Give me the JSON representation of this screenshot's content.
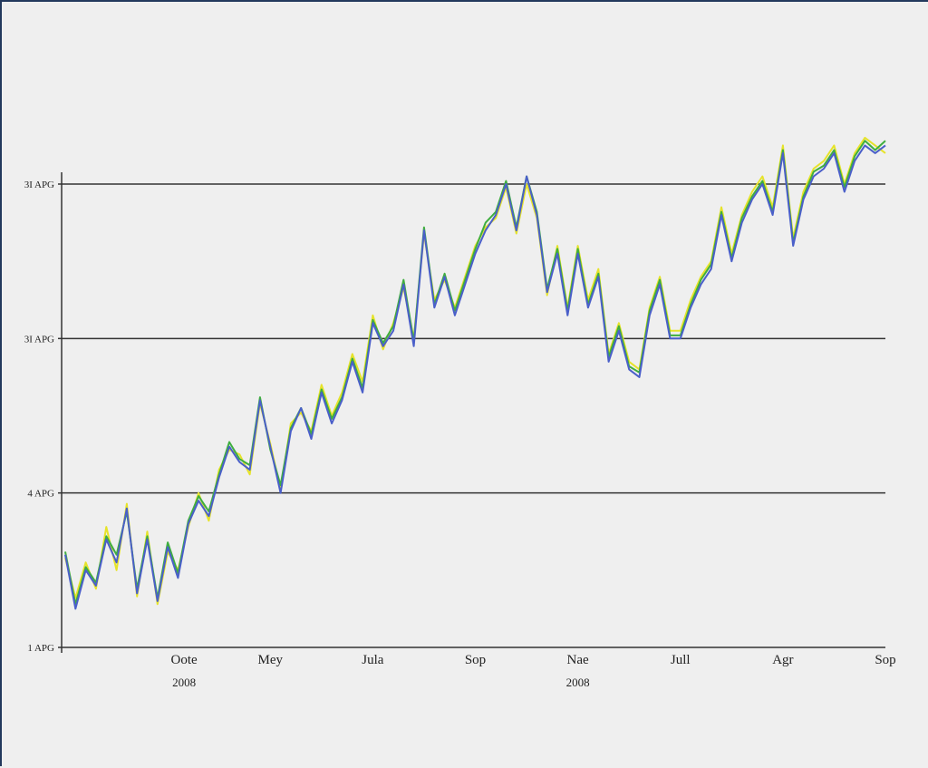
{
  "chart_data": {
    "type": "line",
    "title": "",
    "xlabel": "",
    "ylabel": "",
    "grid": true,
    "y_ticks": [
      {
        "label": "1 APG",
        "value": 1
      },
      {
        "label": "4 APG",
        "value": 2
      },
      {
        "label": "3I APG",
        "value": 3
      },
      {
        "label": "3I APG",
        "value": 4
      }
    ],
    "ylim": [
      1,
      4.75
    ],
    "x_ticks": [
      {
        "label": "Oote",
        "value": 1
      },
      {
        "label": "Mey",
        "value": 2
      },
      {
        "label": "Jula",
        "value": 3
      },
      {
        "label": "Sop",
        "value": 4
      },
      {
        "label": "Nae",
        "value": 5
      },
      {
        "label": "Jull",
        "value": 6
      },
      {
        "label": "Agr",
        "value": 7
      },
      {
        "label": "Sop",
        "value": 8
      }
    ],
    "x_year_labels": [
      {
        "label": "2008",
        "value": 1
      },
      {
        "label": "2008",
        "value": 5
      }
    ],
    "xlim": [
      0.0,
      8.0
    ],
    "colors": {
      "series_1": "#4a5fc9",
      "series_2": "#3fae3f",
      "series_3": "#e6e32a"
    },
    "series": [
      {
        "color_key": "series_1",
        "x": [
          0.0,
          0.1,
          0.2,
          0.3,
          0.4,
          0.5,
          0.6,
          0.7,
          0.8,
          0.9,
          1.0,
          1.1,
          1.2,
          1.3,
          1.4,
          1.5,
          1.6,
          1.7,
          1.8,
          1.9,
          2.0,
          2.1,
          2.2,
          2.3,
          2.4,
          2.5,
          2.6,
          2.7,
          2.8,
          2.9,
          3.0,
          3.1,
          3.2,
          3.3,
          3.4,
          3.5,
          3.6,
          3.7,
          3.8,
          3.9,
          4.0,
          4.1,
          4.2,
          4.3,
          4.4,
          4.5,
          4.6,
          4.7,
          4.8,
          4.9,
          5.0,
          5.1,
          5.2,
          5.3,
          5.4,
          5.5,
          5.6,
          5.7,
          5.8,
          5.9,
          6.0,
          6.1,
          6.2,
          6.3,
          6.4,
          6.5,
          6.6,
          6.7,
          6.8,
          6.9,
          7.0,
          7.1,
          7.2,
          7.3,
          7.4,
          7.5,
          7.6,
          7.7,
          7.8,
          7.9,
          8.0
        ],
        "values": [
          1.6,
          1.25,
          1.5,
          1.4,
          1.7,
          1.55,
          1.9,
          1.35,
          1.7,
          1.3,
          1.65,
          1.45,
          1.8,
          1.95,
          1.85,
          2.1,
          2.3,
          2.2,
          2.15,
          2.6,
          2.3,
          2.0,
          2.4,
          2.55,
          2.35,
          2.65,
          2.45,
          2.6,
          2.85,
          2.65,
          3.1,
          2.95,
          3.05,
          3.35,
          2.95,
          3.7,
          3.2,
          3.4,
          3.15,
          3.35,
          3.55,
          3.7,
          3.8,
          4.0,
          3.7,
          4.05,
          3.8,
          3.3,
          3.55,
          3.15,
          3.55,
          3.2,
          3.4,
          2.85,
          3.05,
          2.8,
          2.75,
          3.15,
          3.35,
          3.0,
          3.0,
          3.2,
          3.35,
          3.45,
          3.8,
          3.5,
          3.75,
          3.9,
          4.0,
          3.8,
          4.2,
          3.6,
          3.9,
          4.05,
          4.1,
          4.2,
          3.95,
          4.15,
          4.25,
          4.2,
          4.25
        ]
      },
      {
        "color_key": "series_2",
        "x": [
          0.0,
          0.1,
          0.2,
          0.3,
          0.4,
          0.5,
          0.6,
          0.7,
          0.8,
          0.9,
          1.0,
          1.1,
          1.2,
          1.3,
          1.4,
          1.5,
          1.6,
          1.7,
          1.8,
          1.9,
          2.0,
          2.1,
          2.2,
          2.3,
          2.4,
          2.5,
          2.6,
          2.7,
          2.8,
          2.9,
          3.0,
          3.1,
          3.2,
          3.3,
          3.4,
          3.5,
          3.6,
          3.7,
          3.8,
          3.9,
          4.0,
          4.1,
          4.2,
          4.3,
          4.4,
          4.5,
          4.6,
          4.7,
          4.8,
          4.9,
          5.0,
          5.1,
          5.2,
          5.3,
          5.4,
          5.5,
          5.6,
          5.7,
          5.8,
          5.9,
          6.0,
          6.1,
          6.2,
          6.3,
          6.4,
          6.5,
          6.6,
          6.7,
          6.8,
          6.9,
          7.0,
          7.1,
          7.2,
          7.3,
          7.4,
          7.5,
          7.6,
          7.7,
          7.8,
          7.9,
          8.0
        ],
        "values": [
          1.62,
          1.28,
          1.52,
          1.42,
          1.72,
          1.6,
          1.88,
          1.38,
          1.72,
          1.32,
          1.68,
          1.48,
          1.82,
          1.98,
          1.88,
          2.12,
          2.33,
          2.22,
          2.18,
          2.62,
          2.28,
          2.05,
          2.42,
          2.55,
          2.38,
          2.67,
          2.48,
          2.62,
          2.87,
          2.68,
          3.12,
          2.97,
          3.08,
          3.38,
          2.98,
          3.72,
          3.22,
          3.42,
          3.18,
          3.38,
          3.58,
          3.75,
          3.82,
          4.02,
          3.72,
          4.05,
          3.82,
          3.32,
          3.58,
          3.18,
          3.58,
          3.22,
          3.42,
          2.88,
          3.08,
          2.82,
          2.78,
          3.18,
          3.38,
          3.02,
          3.02,
          3.22,
          3.38,
          3.48,
          3.82,
          3.52,
          3.78,
          3.92,
          4.02,
          3.82,
          4.22,
          3.62,
          3.92,
          4.08,
          4.12,
          4.22,
          3.98,
          4.18,
          4.28,
          4.22,
          4.28
        ]
      },
      {
        "color_key": "series_3",
        "x": [
          0.0,
          0.1,
          0.2,
          0.3,
          0.4,
          0.5,
          0.6,
          0.7,
          0.8,
          0.9,
          1.0,
          1.1,
          1.2,
          1.3,
          1.4,
          1.5,
          1.6,
          1.7,
          1.8,
          1.9,
          2.0,
          2.1,
          2.2,
          2.3,
          2.4,
          2.5,
          2.6,
          2.7,
          2.8,
          2.9,
          3.0,
          3.1,
          3.2,
          3.3,
          3.4,
          3.5,
          3.6,
          3.7,
          3.8,
          3.9,
          4.0,
          4.1,
          4.2,
          4.3,
          4.4,
          4.5,
          4.6,
          4.7,
          4.8,
          4.9,
          5.0,
          5.1,
          5.2,
          5.3,
          5.4,
          5.5,
          5.6,
          5.7,
          5.8,
          5.9,
          6.0,
          6.1,
          6.2,
          6.3,
          6.4,
          6.5,
          6.6,
          6.7,
          6.8,
          6.9,
          7.0,
          7.1,
          7.2,
          7.3,
          7.4,
          7.5,
          7.6,
          7.7,
          7.8,
          7.9,
          8.0
        ],
        "values": [
          1.58,
          1.32,
          1.55,
          1.38,
          1.78,
          1.5,
          1.93,
          1.33,
          1.75,
          1.28,
          1.62,
          1.5,
          1.78,
          2.0,
          1.82,
          2.15,
          2.28,
          2.25,
          2.12,
          2.58,
          2.32,
          2.02,
          2.45,
          2.52,
          2.4,
          2.7,
          2.5,
          2.65,
          2.9,
          2.72,
          3.15,
          2.93,
          3.1,
          3.33,
          3.0,
          3.68,
          3.25,
          3.38,
          3.2,
          3.4,
          3.6,
          3.72,
          3.78,
          3.98,
          3.68,
          4.0,
          3.78,
          3.28,
          3.6,
          3.2,
          3.6,
          3.25,
          3.45,
          2.9,
          3.1,
          2.85,
          2.8,
          3.2,
          3.4,
          3.05,
          3.05,
          3.25,
          3.4,
          3.5,
          3.85,
          3.55,
          3.8,
          3.95,
          4.05,
          3.85,
          4.25,
          3.65,
          3.95,
          4.1,
          4.15,
          4.25,
          4.0,
          4.2,
          4.3,
          4.25,
          4.2
        ]
      }
    ]
  }
}
